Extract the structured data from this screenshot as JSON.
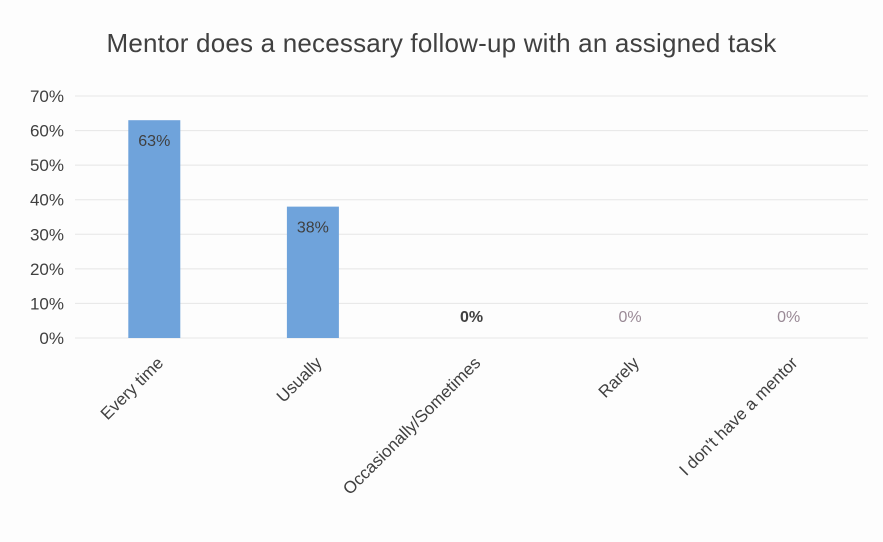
{
  "chart_data": {
    "type": "bar",
    "title": "Mentor does a necessary follow-up with an assigned task",
    "xlabel": "",
    "ylabel": "",
    "categories": [
      "Every time",
      "Usually",
      "Occasionally/Sometimes",
      "Rarely",
      "I don't have a mentor"
    ],
    "values": [
      63,
      38,
      0,
      0,
      0
    ],
    "data_labels": [
      "63%",
      "38%",
      "0%",
      "0%",
      "0%"
    ],
    "ylim": [
      0,
      70
    ],
    "y_ticks": [
      0,
      10,
      20,
      30,
      40,
      50,
      60,
      70
    ],
    "y_tick_labels": [
      "0%",
      "10%",
      "20%",
      "30%",
      "40%",
      "50%",
      "60%",
      "70%"
    ],
    "grid": true,
    "legend": "none",
    "colors": {
      "bar": "#6fa3db",
      "bar_edge": "#5b93cf",
      "grid": "#e6e6e6",
      "text": "#404040",
      "data_label_dark": "#404040",
      "data_label_muted": "#9a8a96"
    }
  }
}
